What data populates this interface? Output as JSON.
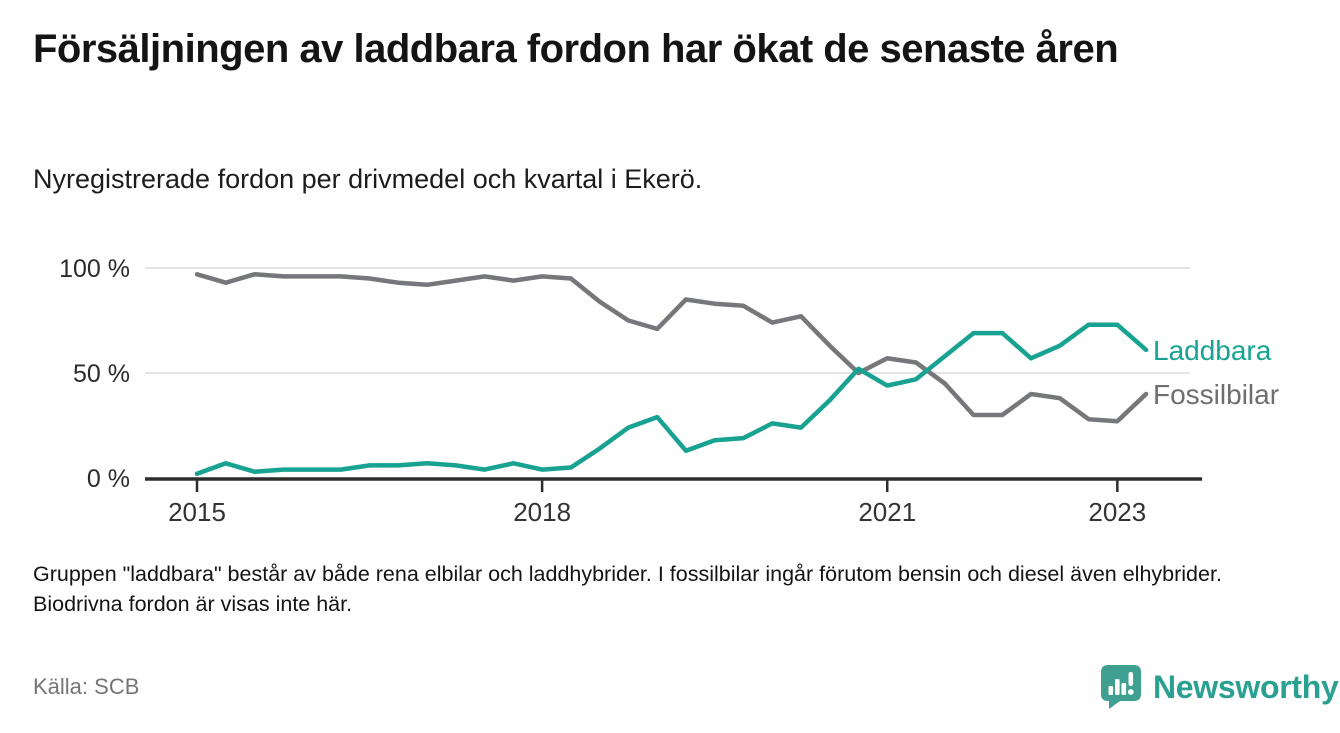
{
  "header": {
    "title": "Försäljningen av laddbara fordon har ökat de senaste åren",
    "subtitle": "Nyregistrerade fordon per drivmedel och kvartal i Ekerö."
  },
  "chart_data": {
    "type": "line",
    "unit": "%",
    "ylim": [
      0,
      100
    ],
    "grid": "horizontal",
    "legend_position": "right-of-line-ends",
    "x_quarters": [
      "2015-Q1",
      "2015-Q2",
      "2015-Q3",
      "2015-Q4",
      "2016-Q1",
      "2016-Q2",
      "2016-Q3",
      "2016-Q4",
      "2017-Q1",
      "2017-Q2",
      "2017-Q3",
      "2017-Q4",
      "2018-Q1",
      "2018-Q2",
      "2018-Q3",
      "2018-Q4",
      "2019-Q1",
      "2019-Q2",
      "2019-Q3",
      "2019-Q4",
      "2020-Q1",
      "2020-Q2",
      "2020-Q3",
      "2020-Q4",
      "2021-Q1",
      "2021-Q2",
      "2021-Q3",
      "2021-Q4",
      "2022-Q1",
      "2022-Q2",
      "2022-Q3",
      "2022-Q4",
      "2023-Q1",
      "2023-Q2"
    ],
    "series": [
      {
        "name": "Laddbara",
        "color": "#17a292",
        "label_color": "#17a292",
        "values": [
          2,
          7,
          3,
          4,
          4,
          4,
          6,
          6,
          7,
          6,
          4,
          7,
          4,
          5,
          14,
          24,
          29,
          13,
          18,
          19,
          26,
          24,
          37,
          52,
          44,
          47,
          58,
          69,
          69,
          57,
          63,
          73,
          73,
          61
        ]
      },
      {
        "name": "Fossilbilar",
        "color": "#76777a",
        "label_color": "#6d6e71",
        "values": [
          97,
          93,
          97,
          96,
          96,
          96,
          95,
          93,
          92,
          94,
          96,
          94,
          96,
          95,
          84,
          75,
          71,
          85,
          83,
          82,
          74,
          77,
          63,
          50,
          57,
          55,
          45,
          30,
          30,
          40,
          38,
          28,
          27,
          40
        ]
      }
    ],
    "y_ticks": [
      {
        "label": "100 %",
        "value": 100
      },
      {
        "label": "50 %",
        "value": 50
      },
      {
        "label": "0 %",
        "value": 0
      }
    ],
    "x_ticks": [
      {
        "label": "2015",
        "index": 0
      },
      {
        "label": "2018",
        "index": 12
      },
      {
        "label": "2021",
        "index": 24
      },
      {
        "label": "2023",
        "index": 32
      }
    ]
  },
  "footnote": "Gruppen \"laddbara\" består av både rena elbilar och laddhybrider. I fossilbilar ingår förutom bensin och diesel även elhybrider. Biodrivna fordon är visas inte här.",
  "source": {
    "label": "Källa: SCB"
  },
  "logo": {
    "text": "Newsworthy",
    "icon_color": "#3fa091",
    "text_color": "#2aa091"
  }
}
